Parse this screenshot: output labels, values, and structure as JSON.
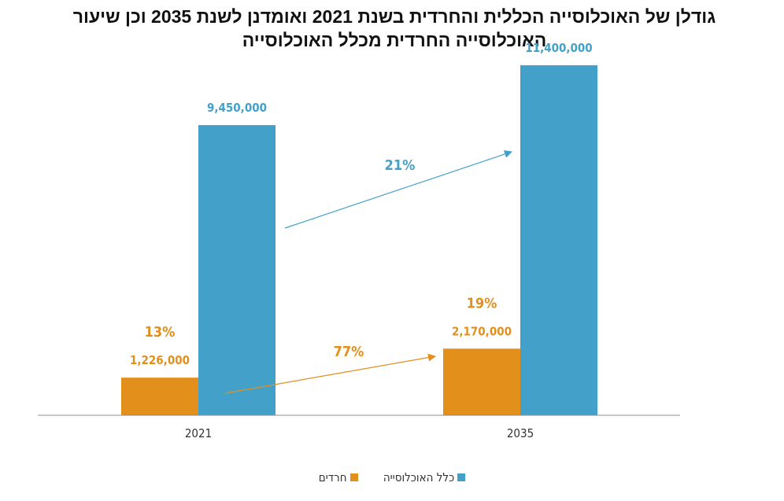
{
  "title": {
    "line1": "גודלן של האוכלוסייה הכללית והחרדית בשנת 2021 ואומדנן לשנת 2035 וכן שיעור",
    "line2": "האוכלוסייה החרדית מכלל האוכלוסייה"
  },
  "chart_data": {
    "type": "bar",
    "categories": [
      "2021",
      "2035"
    ],
    "ylim": [
      0,
      12500000
    ],
    "grid": false,
    "legend_position": "bottom",
    "series": [
      {
        "name": "חרדים",
        "color": "#E28F1C",
        "values": [
          1226000,
          2170000
        ],
        "labels": [
          "1,226,000",
          "2,170,000"
        ]
      },
      {
        "name": "כלל האוכלוסייה",
        "color": "#43A1C9",
        "values": [
          9450000,
          11400000
        ],
        "labels": [
          "9,450,000",
          "11,400,000"
        ]
      }
    ],
    "share_labels": [
      {
        "text": "13%",
        "category": "2021",
        "series": "חרדים"
      },
      {
        "text": "19%",
        "category": "2035",
        "series": "חרדים"
      }
    ],
    "growth_arrows": [
      {
        "text": "21%",
        "series": "כלל האוכלוסייה",
        "color": "#43A1C9"
      },
      {
        "text": "77%",
        "series": "חרדים",
        "color": "#E28F1C"
      }
    ]
  }
}
